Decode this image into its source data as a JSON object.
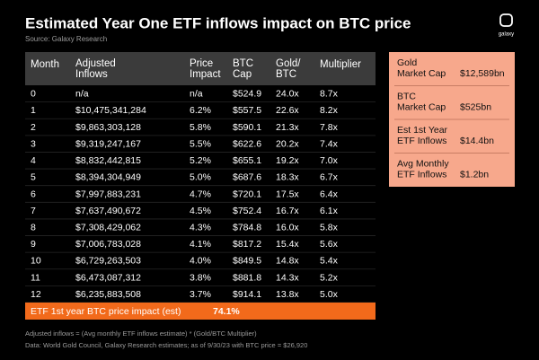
{
  "header": {
    "title": "Estimated Year One ETF inflows impact on BTC price",
    "source": "Source: Galaxy Research",
    "logo": "galaxy"
  },
  "table": {
    "columns": [
      [
        "Month"
      ],
      [
        "Adjusted",
        "Inflows"
      ],
      [
        "Price",
        "Impact"
      ],
      [
        "BTC",
        "Cap"
      ],
      [
        "Gold/",
        "BTC"
      ],
      [
        "Multiplier"
      ]
    ],
    "rows": [
      [
        "0",
        "n/a",
        "n/a",
        "$524.9",
        "24.0x",
        "8.7x"
      ],
      [
        "1",
        "$10,475,341,284",
        "6.2%",
        "$557.5",
        "22.6x",
        "8.2x"
      ],
      [
        "2",
        "$9,863,303,128",
        "5.8%",
        "$590.1",
        "21.3x",
        "7.8x"
      ],
      [
        "3",
        "$9,319,247,167",
        "5.5%",
        "$622.6",
        "20.2x",
        "7.4x"
      ],
      [
        "4",
        "$8,832,442,815",
        "5.2%",
        "$655.1",
        "19.2x",
        "7.0x"
      ],
      [
        "5",
        "$8,394,304,949",
        "5.0%",
        "$687.6",
        "18.3x",
        "6.7x"
      ],
      [
        "6",
        "$7,997,883,231",
        "4.7%",
        "$720.1",
        "17.5x",
        "6.4x"
      ],
      [
        "7",
        "$7,637,490,672",
        "4.5%",
        "$752.4",
        "16.7x",
        "6.1x"
      ],
      [
        "8",
        "$7,308,429,062",
        "4.3%",
        "$784.8",
        "16.0x",
        "5.8x"
      ],
      [
        "9",
        "$7,006,783,028",
        "4.1%",
        "$817.2",
        "15.4x",
        "5.6x"
      ],
      [
        "10",
        "$6,729,263,503",
        "4.0%",
        "$849.5",
        "14.8x",
        "5.4x"
      ],
      [
        "11",
        "$6,473,087,312",
        "3.8%",
        "$881.8",
        "14.3x",
        "5.2x"
      ],
      [
        "12",
        "$6,235,883,508",
        "3.7%",
        "$914.1",
        "13.8x",
        "5.0x"
      ]
    ],
    "footer": {
      "label": "ETF 1st year BTC price impact (est)",
      "value": "74.1%"
    }
  },
  "sidebar": [
    {
      "label": [
        "Gold",
        "Market Cap"
      ],
      "value": "$12,589bn"
    },
    {
      "label": [
        "BTC",
        "Market Cap"
      ],
      "value": "$525bn"
    },
    {
      "label": [
        "Est 1st Year",
        "ETF Inflows"
      ],
      "value": "$14.4bn"
    },
    {
      "label": [
        "Avg Monthly",
        "ETF Inflows"
      ],
      "value": "$1.2bn"
    }
  ],
  "notes": [
    "Adjusted inflows = (Avg monthly ETF inflows estimate) * (Gold/BTC Multiplier)",
    "Data: World Gold Council, Galaxy Research estimates; as of 9/30/23 with BTC price = $26,920"
  ]
}
